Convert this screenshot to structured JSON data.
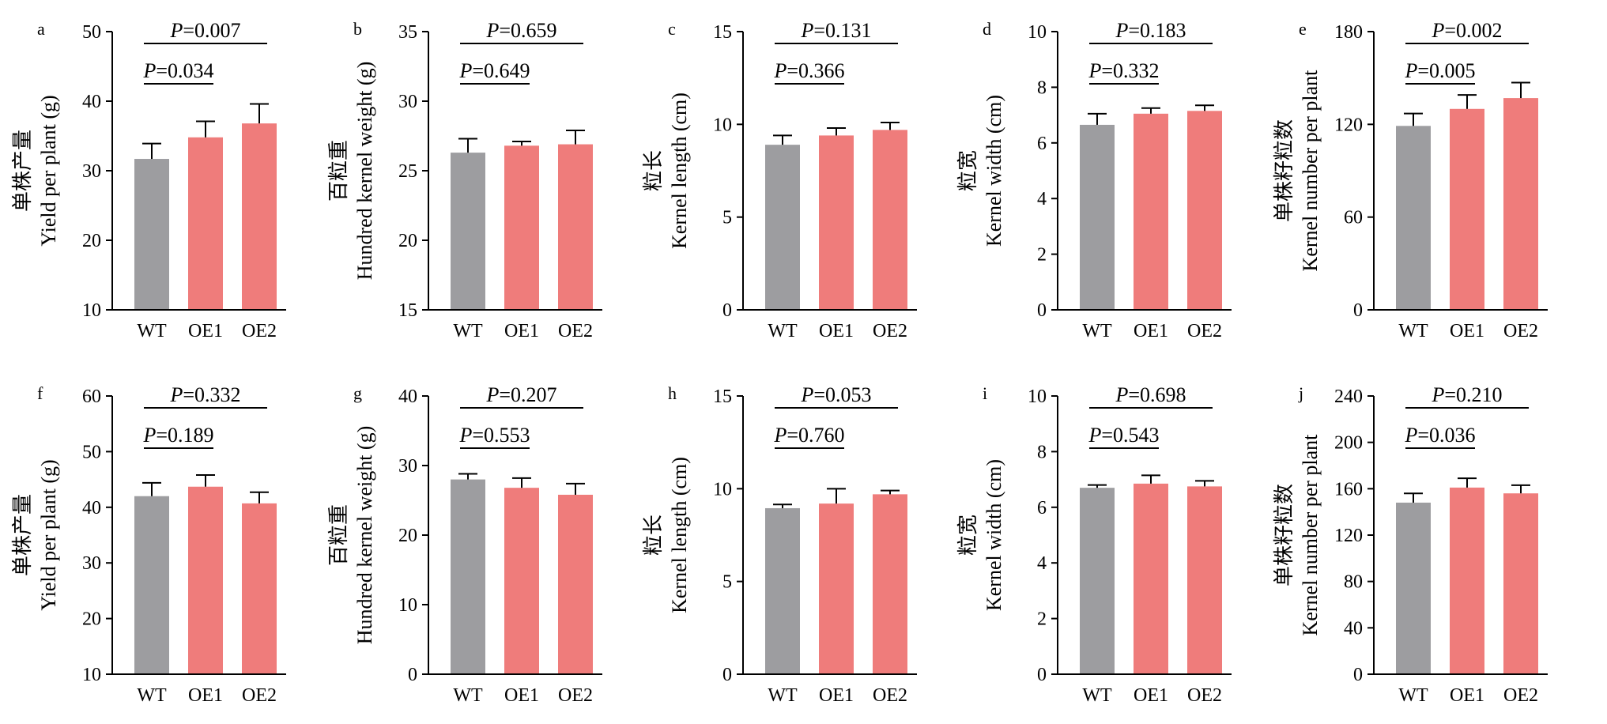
{
  "colors": {
    "wt": "#9d9da0",
    "oe": "#ef7c7b",
    "axis": "#000000"
  },
  "chart_data": [
    {
      "type": "bar",
      "panel": "a",
      "ylabel_cn": "单株产量",
      "ylabel_en": "Yield per plant (g)",
      "categories": [
        "WT",
        "OE1",
        "OE2"
      ],
      "values": [
        31.7,
        34.8,
        36.8
      ],
      "errors": [
        2.2,
        2.3,
        2.8
      ],
      "ylim": [
        10,
        50
      ],
      "yticks": [
        "10",
        "20",
        "30",
        "40",
        "50"
      ],
      "comparisons": [
        {
          "label": "P=0.034",
          "from": 0,
          "to": 1,
          "level": 0
        },
        {
          "label": "P=0.007",
          "from": 0,
          "to": 2,
          "level": 1
        }
      ]
    },
    {
      "type": "bar",
      "panel": "b",
      "ylabel_cn": "百粒重",
      "ylabel_en": "Hundred kernel weight (g)",
      "categories": [
        "WT",
        "OE1",
        "OE2"
      ],
      "values": [
        26.3,
        26.8,
        26.9
      ],
      "errors": [
        1.0,
        0.3,
        1.0
      ],
      "ylim": [
        15,
        35
      ],
      "yticks": [
        "15",
        "20",
        "25",
        "30",
        "35"
      ],
      "comparisons": [
        {
          "label": "P=0.649",
          "from": 0,
          "to": 1,
          "level": 0
        },
        {
          "label": "P=0.659",
          "from": 0,
          "to": 2,
          "level": 1
        }
      ]
    },
    {
      "type": "bar",
      "panel": "c",
      "ylabel_cn": "粒长",
      "ylabel_en": "Kernel length (cm)",
      "categories": [
        "WT",
        "OE1",
        "OE2"
      ],
      "values": [
        8.9,
        9.4,
        9.7
      ],
      "errors": [
        0.5,
        0.4,
        0.4
      ],
      "ylim": [
        0,
        15
      ],
      "yticks": [
        "0",
        "5",
        "10",
        "15"
      ],
      "comparisons": [
        {
          "label": "P=0.366",
          "from": 0,
          "to": 1,
          "level": 0
        },
        {
          "label": "P=0.131",
          "from": 0,
          "to": 2,
          "level": 1
        }
      ]
    },
    {
      "type": "bar",
      "panel": "d",
      "ylabel_cn": "粒宽",
      "ylabel_en": "Kernel width (cm)",
      "categories": [
        "WT",
        "OE1",
        "OE2"
      ],
      "values": [
        6.65,
        7.05,
        7.15
      ],
      "errors": [
        0.4,
        0.2,
        0.2
      ],
      "ylim": [
        0,
        10
      ],
      "yticks": [
        "0",
        "2",
        "4",
        "6",
        "8",
        "10"
      ],
      "comparisons": [
        {
          "label": "P=0.332",
          "from": 0,
          "to": 1,
          "level": 0
        },
        {
          "label": "P=0.183",
          "from": 0,
          "to": 2,
          "level": 1
        }
      ]
    },
    {
      "type": "bar",
      "panel": "e",
      "ylabel_cn": "单株籽粒数",
      "ylabel_en": "Kernel number per plant",
      "categories": [
        "WT",
        "OE1",
        "OE2"
      ],
      "values": [
        119,
        130,
        137
      ],
      "errors": [
        8,
        9,
        10
      ],
      "ylim": [
        0,
        180
      ],
      "yticks": [
        "0",
        "60",
        "120",
        "180"
      ],
      "comparisons": [
        {
          "label": "P=0.005",
          "from": 0,
          "to": 1,
          "level": 0
        },
        {
          "label": "P=0.002",
          "from": 0,
          "to": 2,
          "level": 1
        }
      ]
    },
    {
      "type": "bar",
      "panel": "f",
      "ylabel_cn": "单株产量",
      "ylabel_en": "Yield per plant (g)",
      "categories": [
        "WT",
        "OE1",
        "OE2"
      ],
      "values": [
        42,
        43.7,
        40.7
      ],
      "errors": [
        2.4,
        2.1,
        2.0
      ],
      "ylim": [
        10,
        60
      ],
      "yticks": [
        "10",
        "20",
        "30",
        "40",
        "50",
        "60"
      ],
      "comparisons": [
        {
          "label": "P=0.189",
          "from": 0,
          "to": 1,
          "level": 0
        },
        {
          "label": "P=0.332",
          "from": 0,
          "to": 2,
          "level": 1
        }
      ]
    },
    {
      "type": "bar",
      "panel": "g",
      "ylabel_cn": "百粒重",
      "ylabel_en": "Hundred kernel weight (g)",
      "categories": [
        "WT",
        "OE1",
        "OE2"
      ],
      "values": [
        28,
        26.8,
        25.8
      ],
      "errors": [
        0.8,
        1.4,
        1.6
      ],
      "ylim": [
        0,
        40
      ],
      "yticks": [
        "0",
        "10",
        "20",
        "30",
        "40"
      ],
      "comparisons": [
        {
          "label": "P=0.553",
          "from": 0,
          "to": 1,
          "level": 0
        },
        {
          "label": "P=0.207",
          "from": 0,
          "to": 2,
          "level": 1
        }
      ]
    },
    {
      "type": "bar",
      "panel": "h",
      "ylabel_cn": "粒长",
      "ylabel_en": "Kernel length (cm)",
      "categories": [
        "WT",
        "OE1",
        "OE2"
      ],
      "values": [
        8.95,
        9.2,
        9.7
      ],
      "errors": [
        0.2,
        0.8,
        0.2
      ],
      "ylim": [
        0,
        15
      ],
      "yticks": [
        "0",
        "5",
        "10",
        "15"
      ],
      "comparisons": [
        {
          "label": "P=0.760",
          "from": 0,
          "to": 1,
          "level": 0
        },
        {
          "label": "P=0.053",
          "from": 0,
          "to": 2,
          "level": 1
        }
      ]
    },
    {
      "type": "bar",
      "panel": "i",
      "ylabel_cn": "粒宽",
      "ylabel_en": "Kernel width (cm)",
      "categories": [
        "WT",
        "OE1",
        "OE2"
      ],
      "values": [
        6.7,
        6.85,
        6.75
      ],
      "errors": [
        0.1,
        0.3,
        0.2
      ],
      "ylim": [
        0,
        10
      ],
      "yticks": [
        "0",
        "2",
        "4",
        "6",
        "8",
        "10"
      ],
      "comparisons": [
        {
          "label": "P=0.543",
          "from": 0,
          "to": 1,
          "level": 0
        },
        {
          "label": "P=0.698",
          "from": 0,
          "to": 2,
          "level": 1
        }
      ]
    },
    {
      "type": "bar",
      "panel": "j",
      "ylabel_cn": "单株籽粒数",
      "ylabel_en": "Kernel number per plant",
      "categories": [
        "WT",
        "OE1",
        "OE2"
      ],
      "values": [
        148,
        161,
        156
      ],
      "errors": [
        8,
        8,
        7
      ],
      "ylim": [
        0,
        240
      ],
      "yticks": [
        "0",
        "40",
        "80",
        "120",
        "160",
        "200",
        "240"
      ],
      "comparisons": [
        {
          "label": "P=0.036",
          "from": 0,
          "to": 1,
          "level": 0
        },
        {
          "label": "P=0.210",
          "from": 0,
          "to": 2,
          "level": 1
        }
      ]
    }
  ]
}
